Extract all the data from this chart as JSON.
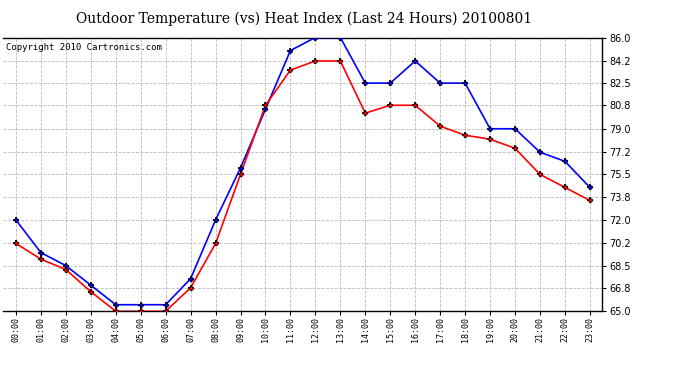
{
  "title": "Outdoor Temperature (vs) Heat Index (Last 24 Hours) 20100801",
  "copyright": "Copyright 2010 Cartronics.com",
  "hours": [
    "00:00",
    "01:00",
    "02:00",
    "03:00",
    "04:00",
    "05:00",
    "06:00",
    "07:00",
    "08:00",
    "09:00",
    "10:00",
    "11:00",
    "12:00",
    "13:00",
    "14:00",
    "15:00",
    "16:00",
    "17:00",
    "18:00",
    "19:00",
    "20:00",
    "21:00",
    "22:00",
    "23:00"
  ],
  "temp_blue": [
    72.0,
    69.5,
    68.5,
    67.0,
    65.5,
    65.5,
    65.5,
    67.5,
    72.0,
    76.0,
    80.5,
    85.0,
    86.0,
    86.0,
    82.5,
    82.5,
    84.2,
    82.5,
    82.5,
    79.0,
    79.0,
    77.2,
    76.5,
    74.5
  ],
  "heat_red": [
    70.2,
    69.0,
    68.2,
    66.5,
    65.0,
    65.0,
    65.0,
    66.8,
    70.2,
    75.5,
    80.8,
    83.5,
    84.2,
    84.2,
    80.2,
    80.8,
    80.8,
    79.2,
    78.5,
    78.2,
    77.5,
    75.5,
    74.5,
    73.5
  ],
  "ylim": [
    65.0,
    86.0
  ],
  "yticks": [
    65.0,
    66.8,
    68.5,
    70.2,
    72.0,
    73.8,
    75.5,
    77.2,
    79.0,
    80.8,
    82.5,
    84.2,
    86.0
  ],
  "blue_color": "#0000FF",
  "red_color": "#FF0000",
  "bg_color": "#FFFFFF",
  "grid_color": "#BBBBBB",
  "title_fontsize": 10,
  "copyright_fontsize": 6.5
}
